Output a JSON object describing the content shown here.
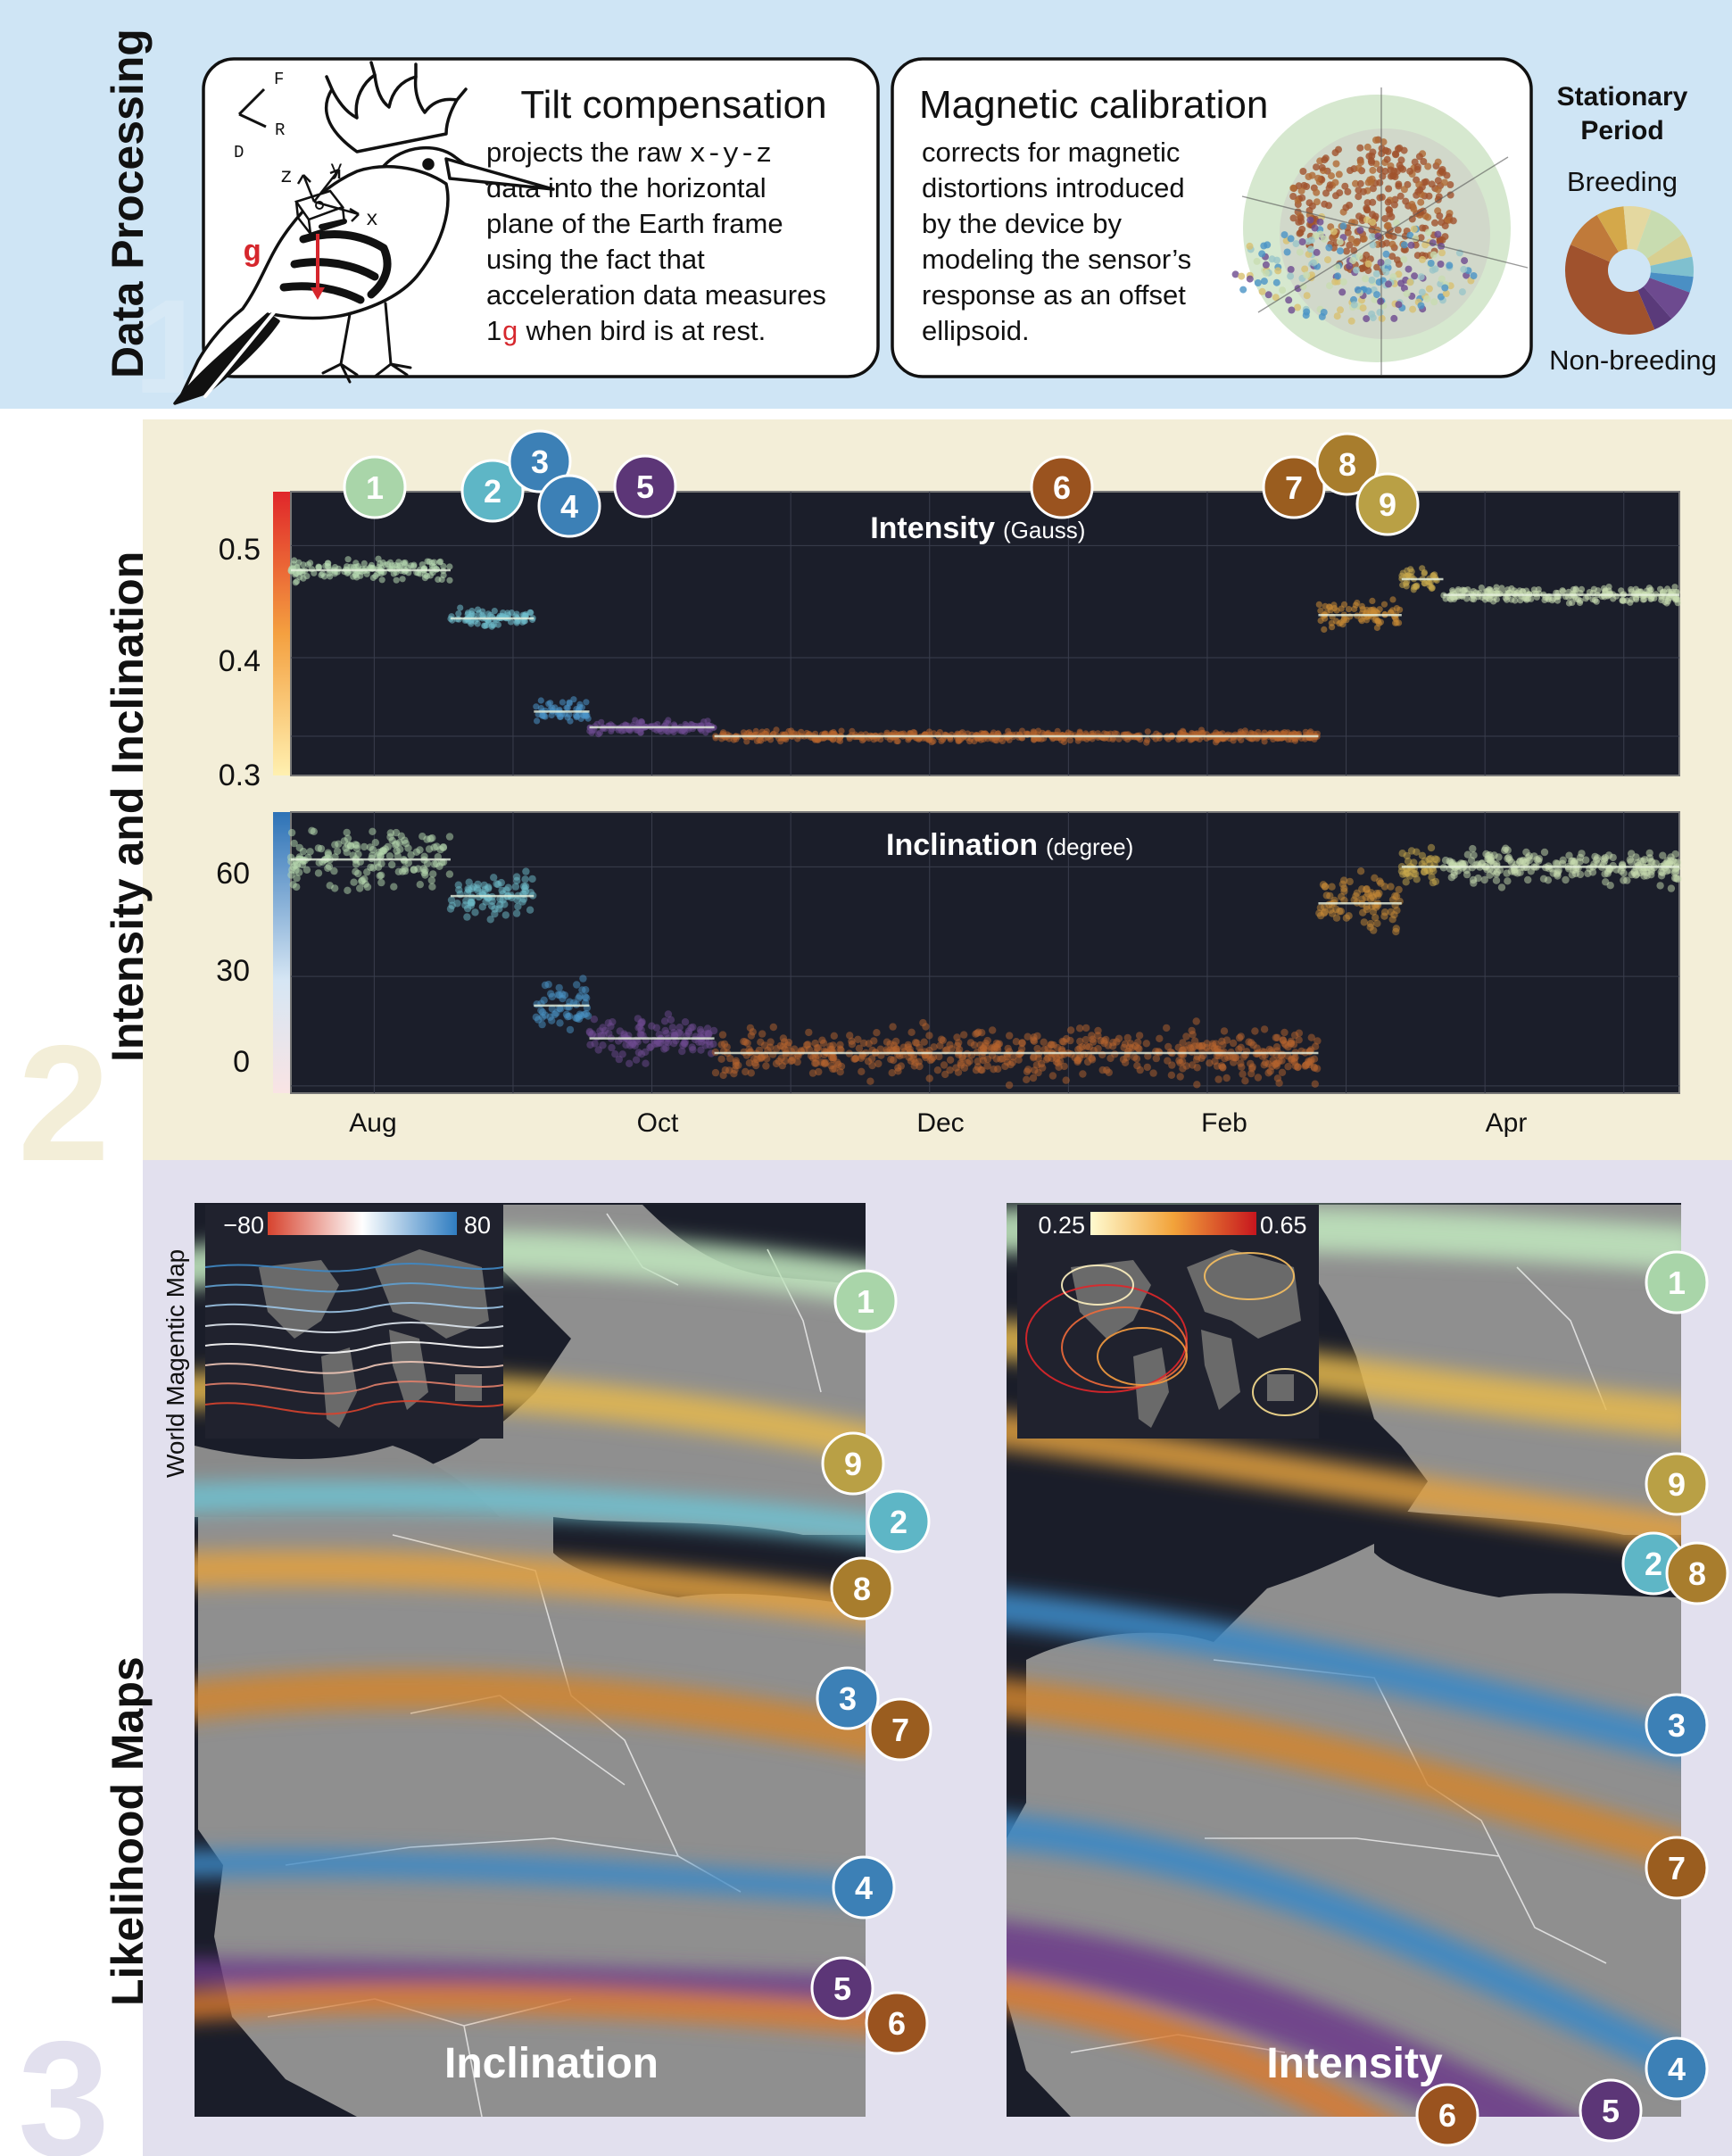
{
  "section1": {
    "number": "1",
    "label": "Data Processing",
    "tilt": {
      "title": "Tilt compensation",
      "lines": [
        "projects the raw",
        "data into the horizontal",
        "plane of the Earth frame",
        "using the fact that",
        "acceleration data measures",
        "when bird is at rest."
      ],
      "xyz": "x-y-z",
      "one_g": "1",
      "g": "g"
    },
    "axes_labels": {
      "F": "F",
      "R": "R",
      "D": "D",
      "z": "z",
      "y": "y",
      "x": "x",
      "g": "g"
    },
    "magcal": {
      "title": "Magnetic calibration",
      "lines": [
        "corrects for magnetic",
        "distortions introduced",
        "by the device by",
        "modeling the sensor’s",
        "response as an offset",
        "ellipsoid."
      ]
    },
    "stationary": {
      "title_line1": "Stationary",
      "title_line2": "Period",
      "top_label": "Breeding",
      "bottom_label": "Non-breeding"
    }
  },
  "section2": {
    "number": "2",
    "label": "Intensity and Inclination",
    "markers": [
      {
        "id": "1",
        "color": "#a9d5a9"
      },
      {
        "id": "2",
        "color": "#5eb6c6"
      },
      {
        "id": "3",
        "color": "#3c80b6"
      },
      {
        "id": "4",
        "color": "#3c80b6"
      },
      {
        "id": "5",
        "color": "#5c3677"
      },
      {
        "id": "6",
        "color": "#9a531f"
      },
      {
        "id": "7",
        "color": "#9a5d1f"
      },
      {
        "id": "8",
        "color": "#a87d2d"
      },
      {
        "id": "9",
        "color": "#b9a045"
      }
    ],
    "intensity": {
      "title": "Intensity",
      "unit": "(Gauss)",
      "ticks": [
        "0.5",
        "0.4",
        "0.3"
      ]
    },
    "inclination": {
      "title": "Inclination",
      "unit": "(degree)",
      "ticks": [
        "60",
        "30",
        "0"
      ]
    },
    "months": [
      "Aug",
      "Oct",
      "Dec",
      "Feb",
      "Apr"
    ]
  },
  "section3": {
    "number": "3",
    "label": "Likelihood Maps",
    "world_map_label": "World Magentic Map",
    "left_map": {
      "title": "Inclination",
      "legend_min": "−80",
      "legend_max": "80",
      "markers": [
        "1",
        "9",
        "2",
        "8",
        "3",
        "7",
        "4",
        "5",
        "6"
      ]
    },
    "right_map": {
      "title": "Intensity",
      "legend_min": "0.25",
      "legend_max": "0.65",
      "markers": [
        "1",
        "9",
        "2",
        "8",
        "3",
        "7",
        "4",
        "6",
        "5"
      ]
    }
  },
  "colors": {
    "panel1_bg": "#cfe5f5",
    "panel2_bg": "#f3eed8",
    "panel3_bg": "#e2e0ee",
    "plot_bg": "#1b1e2a"
  }
}
